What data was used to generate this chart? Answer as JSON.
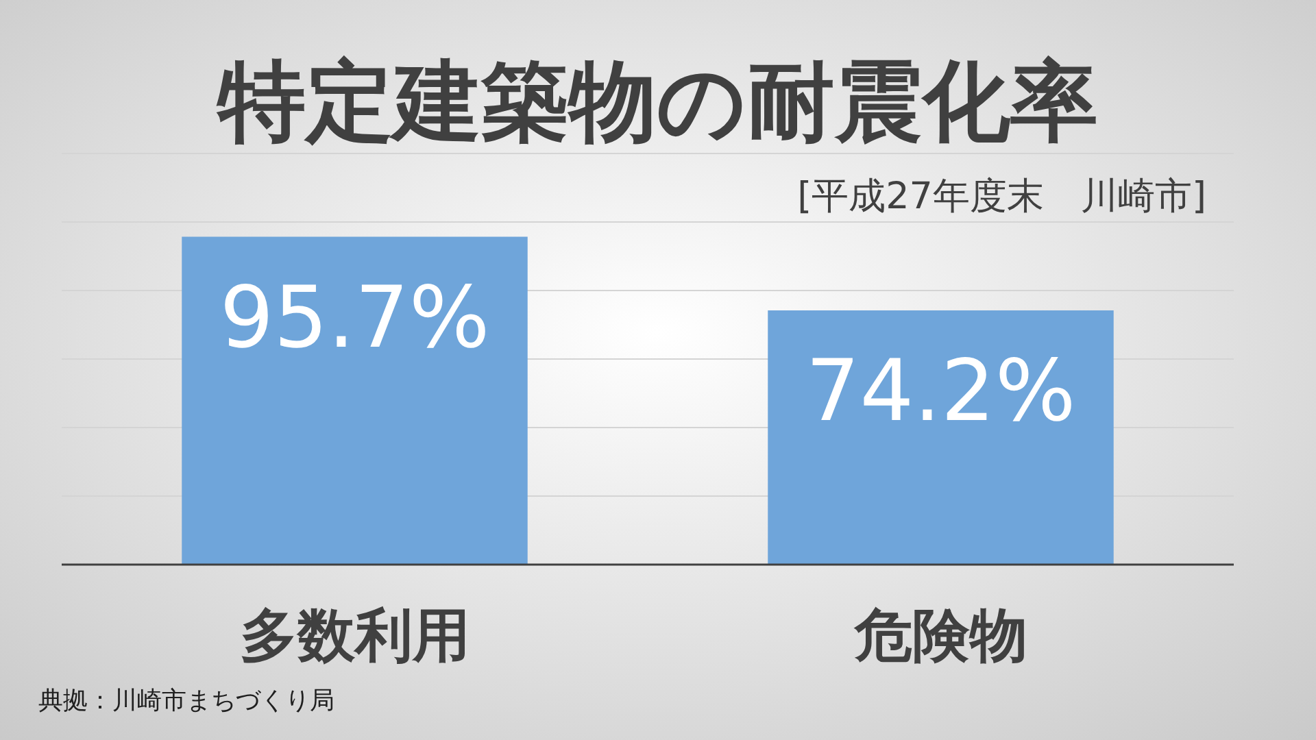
{
  "chart_data": {
    "type": "bar",
    "title": "特定建築物の耐震化率",
    "subtitle": "[平成27年度末　川崎市]",
    "categories": [
      "多数利用",
      "危険物"
    ],
    "values": [
      95.7,
      74.2
    ],
    "value_labels": [
      "95.7%",
      "74.2%"
    ],
    "color": "#6fa5da",
    "ylim": [
      0,
      120
    ],
    "yticks": [
      {
        "value": 0,
        "label": null
      },
      {
        "value": 20,
        "label": null
      },
      {
        "value": 40,
        "label": null
      },
      {
        "value": 60,
        "label": null
      },
      {
        "value": 80,
        "label": null
      },
      {
        "value": 100,
        "label": null
      },
      {
        "value": 120,
        "label": null
      }
    ],
    "grid": "y",
    "tick_labels": "x",
    "annotations": [
      "典拠：川崎市まちづくり局"
    ]
  }
}
